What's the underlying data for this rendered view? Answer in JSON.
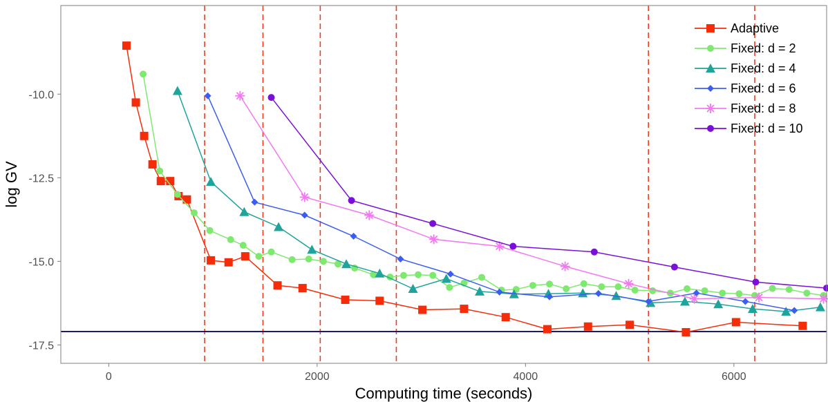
{
  "chart_data": {
    "type": "line",
    "xlabel": "Computing time (seconds)",
    "ylabel": "log GV",
    "xlim": [
      -460,
      6890
    ],
    "ylim": [
      -18.05,
      -7.35
    ],
    "x_ticks": [
      0,
      2000,
      4000,
      6000
    ],
    "y_ticks": [
      -10.0,
      -12.5,
      -15.0,
      -17.5
    ],
    "x_tick_labels": [
      "0",
      "2000",
      "4000",
      "6000"
    ],
    "y_tick_labels": [
      "-10.0",
      "-12.5",
      "-15.0",
      "-17.5"
    ],
    "grid": false,
    "legend_position": "top-right",
    "vertical_lines": [
      920,
      1480,
      2030,
      2760,
      5180,
      6200
    ],
    "vertical_line_color": "#f03b20",
    "horizontal_line": -17.1,
    "horizontal_line_color": "#1f1a6e",
    "series": [
      {
        "name": "Adaptive",
        "color": "#f42c0a",
        "marker": "square",
        "points": [
          [
            170,
            -8.55
          ],
          [
            260,
            -10.25
          ],
          [
            340,
            -11.25
          ],
          [
            420,
            -12.1
          ],
          [
            500,
            -12.6
          ],
          [
            590,
            -12.6
          ],
          [
            670,
            -13.05
          ],
          [
            750,
            -13.15
          ],
          [
            980,
            -14.97
          ],
          [
            1150,
            -15.03
          ],
          [
            1310,
            -14.85
          ],
          [
            1620,
            -15.72
          ],
          [
            1860,
            -15.8
          ],
          [
            2270,
            -16.15
          ],
          [
            2600,
            -16.18
          ],
          [
            3010,
            -16.45
          ],
          [
            3410,
            -16.42
          ],
          [
            3810,
            -16.67
          ],
          [
            4210,
            -17.03
          ],
          [
            4600,
            -16.95
          ],
          [
            5000,
            -16.9
          ],
          [
            5540,
            -17.12
          ],
          [
            6020,
            -16.82
          ],
          [
            6660,
            -16.93
          ]
        ]
      },
      {
        "name": "Fixed: d = 2",
        "color": "#7fe870",
        "marker": "circle",
        "points": [
          [
            330,
            -9.4
          ],
          [
            490,
            -12.3
          ],
          [
            660,
            -13.0
          ],
          [
            820,
            -13.55
          ],
          [
            970,
            -14.08
          ],
          [
            1170,
            -14.35
          ],
          [
            1290,
            -14.52
          ],
          [
            1440,
            -14.85
          ],
          [
            1560,
            -14.72
          ],
          [
            1760,
            -14.95
          ],
          [
            1920,
            -14.93
          ],
          [
            2060,
            -15.0
          ],
          [
            2200,
            -15.08
          ],
          [
            2360,
            -15.2
          ],
          [
            2540,
            -15.4
          ],
          [
            2700,
            -15.47
          ],
          [
            2830,
            -15.42
          ],
          [
            2970,
            -15.4
          ],
          [
            3110,
            -15.42
          ],
          [
            3270,
            -15.78
          ],
          [
            3410,
            -15.65
          ],
          [
            3580,
            -15.48
          ],
          [
            3770,
            -15.86
          ],
          [
            3910,
            -15.84
          ],
          [
            4070,
            -15.72
          ],
          [
            4230,
            -15.68
          ],
          [
            4390,
            -15.82
          ],
          [
            4560,
            -15.67
          ],
          [
            4730,
            -15.76
          ],
          [
            4890,
            -15.76
          ],
          [
            5050,
            -15.86
          ],
          [
            5220,
            -15.88
          ],
          [
            5390,
            -15.95
          ],
          [
            5550,
            -15.82
          ],
          [
            5720,
            -15.88
          ],
          [
            5890,
            -15.95
          ],
          [
            6050,
            -15.97
          ],
          [
            6200,
            -16.02
          ],
          [
            6370,
            -15.81
          ],
          [
            6530,
            -15.84
          ],
          [
            6700,
            -15.95
          ],
          [
            6860,
            -16.02
          ]
        ]
      },
      {
        "name": "Fixed: d = 4",
        "color": "#20a39a",
        "marker": "triangle",
        "points": [
          [
            660,
            -9.9
          ],
          [
            980,
            -12.62
          ],
          [
            1300,
            -13.52
          ],
          [
            1630,
            -13.97
          ],
          [
            1950,
            -14.65
          ],
          [
            2280,
            -15.08
          ],
          [
            2600,
            -15.36
          ],
          [
            2920,
            -15.82
          ],
          [
            3240,
            -15.52
          ],
          [
            3560,
            -15.9
          ],
          [
            3890,
            -15.98
          ],
          [
            4220,
            -15.97
          ],
          [
            4550,
            -15.95
          ],
          [
            4870,
            -16.03
          ],
          [
            5200,
            -16.24
          ],
          [
            5530,
            -16.2
          ],
          [
            5850,
            -16.28
          ],
          [
            6180,
            -16.42
          ],
          [
            6500,
            -16.5
          ],
          [
            6830,
            -16.37
          ]
        ]
      },
      {
        "name": "Fixed: d = 6",
        "color": "#3c5ef0",
        "marker": "diamond",
        "points": [
          [
            950,
            -10.05
          ],
          [
            1400,
            -13.23
          ],
          [
            1880,
            -13.62
          ],
          [
            2350,
            -14.25
          ],
          [
            2800,
            -14.93
          ],
          [
            3280,
            -15.38
          ],
          [
            3750,
            -15.92
          ],
          [
            4230,
            -16.06
          ],
          [
            4700,
            -15.96
          ],
          [
            5180,
            -16.2
          ],
          [
            5640,
            -15.95
          ],
          [
            6110,
            -16.2
          ],
          [
            6580,
            -16.47
          ]
        ]
      },
      {
        "name": "Fixed: d = 8",
        "color": "#f27af0",
        "marker": "star",
        "points": [
          [
            1260,
            -10.05
          ],
          [
            1880,
            -13.08
          ],
          [
            2500,
            -13.62
          ],
          [
            3120,
            -14.34
          ],
          [
            3750,
            -14.55
          ],
          [
            4380,
            -15.15
          ],
          [
            4990,
            -15.67
          ],
          [
            5620,
            -16.12
          ],
          [
            6240,
            -16.08
          ],
          [
            6860,
            -16.12
          ]
        ]
      },
      {
        "name": "Fixed: d = 10",
        "color": "#7a10d8",
        "marker": "circle",
        "points": [
          [
            1560,
            -10.1
          ],
          [
            2330,
            -13.18
          ],
          [
            3110,
            -13.87
          ],
          [
            3880,
            -14.55
          ],
          [
            4660,
            -14.72
          ],
          [
            5430,
            -15.17
          ],
          [
            6210,
            -15.62
          ],
          [
            6890,
            -15.8
          ]
        ]
      }
    ]
  }
}
